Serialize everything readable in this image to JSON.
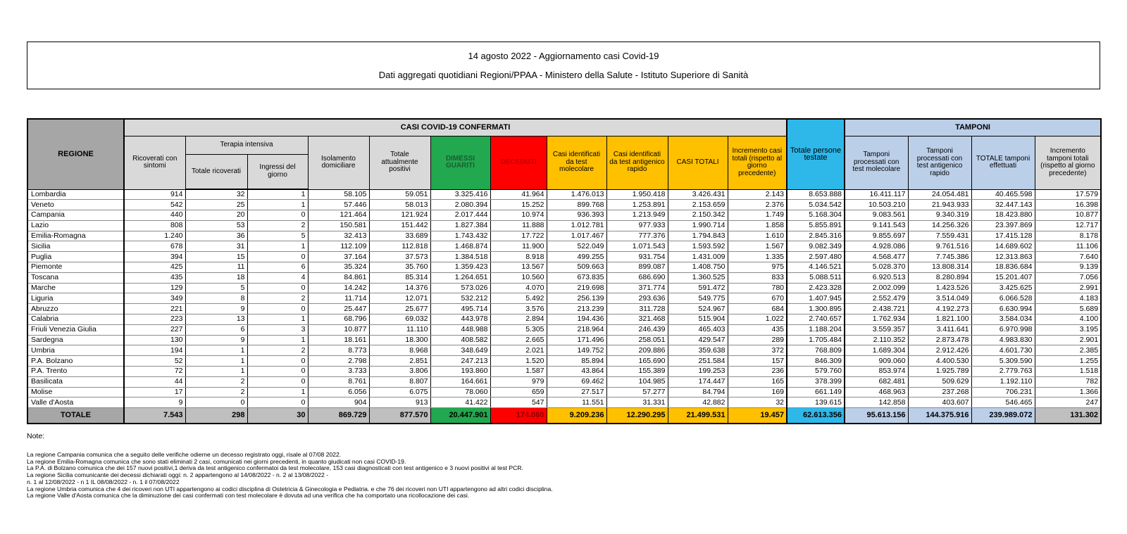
{
  "title_box": {
    "line1": "14 agosto 2022 - Aggiornamento casi Covid-19",
    "line2": "Dati aggregati quotidiani Regioni/PPAA - Ministero della Salute - Istituto Superiore di Sanità"
  },
  "table": {
    "headers": {
      "regione": "REGIONE",
      "casi_confermati": "CASI COVID-19 CONFERMATI",
      "tamponi": "TAMPONI",
      "ricoverati": "Ricoverati con sintomi",
      "terapia": "Terapia intensiva",
      "terapia_totale": "Totale ricoverati",
      "terapia_ingressi": "Ingressi del giorno",
      "isolamento": "Isolamento domiciliare",
      "attualmente_positivi": "Totale attualmente positivi",
      "dimessi": "DIMESSI GUARITI",
      "deceduti": "DECEDUTI",
      "casi_molecolare": "Casi identificati da test molecolare",
      "casi_antigenico": "Casi identificati da test antigenico rapido",
      "casi_totali": "CASI TOTALI",
      "incremento_casi": "Incremento casi totali (rispetto al giorno precedente)",
      "persone_testate": "Totale persone testate",
      "tamponi_molecolare": "Tamponi processati con test molecolare",
      "tamponi_antigenico": "Tamponi processati con test antigenico rapido",
      "tamponi_totale": "TOTALE tamponi effettuati",
      "incremento_tamponi": "Incremento tamponi totali (rispetto al giorno precedente)"
    },
    "rows": [
      {
        "region": "Lombardia",
        "values": [
          "914",
          "32",
          "1",
          "58.105",
          "59.051",
          "3.325.416",
          "41.964",
          "1.476.013",
          "1.950.418",
          "3.426.431",
          "2.143",
          "8.653.888",
          "16.411.117",
          "24.054.481",
          "40.465.598",
          "17.579"
        ]
      },
      {
        "region": "Veneto",
        "values": [
          "542",
          "25",
          "1",
          "57.446",
          "58.013",
          "2.080.394",
          "15.252",
          "899.768",
          "1.253.891",
          "2.153.659",
          "2.376",
          "5.034.542",
          "10.503.210",
          "21.943.933",
          "32.447.143",
          "16.398"
        ]
      },
      {
        "region": "Campania",
        "values": [
          "440",
          "20",
          "0",
          "121.464",
          "121.924",
          "2.017.444",
          "10.974",
          "936.393",
          "1.213.949",
          "2.150.342",
          "1.749",
          "5.168.304",
          "9.083.561",
          "9.340.319",
          "18.423.880",
          "10.877"
        ]
      },
      {
        "region": "Lazio",
        "values": [
          "808",
          "53",
          "2",
          "150.581",
          "151.442",
          "1.827.384",
          "11.888",
          "1.012.781",
          "977.933",
          "1.990.714",
          "1.858",
          "5.855.891",
          "9.141.543",
          "14.256.326",
          "23.397.869",
          "12.717"
        ]
      },
      {
        "region": "Emilia-Romagna",
        "values": [
          "1.240",
          "36",
          "5",
          "32.413",
          "33.689",
          "1.743.432",
          "17.722",
          "1.017.467",
          "777.376",
          "1.794.843",
          "1.610",
          "2.845.316",
          "9.855.697",
          "7.559.431",
          "17.415.128",
          "8.178"
        ]
      },
      {
        "region": "Sicilia",
        "values": [
          "678",
          "31",
          "1",
          "112.109",
          "112.818",
          "1.468.874",
          "11.900",
          "522.049",
          "1.071.543",
          "1.593.592",
          "1.567",
          "9.082.349",
          "4.928.086",
          "9.761.516",
          "14.689.602",
          "11.106"
        ]
      },
      {
        "region": "Puglia",
        "values": [
          "394",
          "15",
          "0",
          "37.164",
          "37.573",
          "1.384.518",
          "8.918",
          "499.255",
          "931.754",
          "1.431.009",
          "1.335",
          "2.597.480",
          "4.568.477",
          "7.745.386",
          "12.313.863",
          "7.640"
        ]
      },
      {
        "region": "Piemonte",
        "values": [
          "425",
          "11",
          "6",
          "35.324",
          "35.760",
          "1.359.423",
          "13.567",
          "509.663",
          "899.087",
          "1.408.750",
          "975",
          "4.146.521",
          "5.028.370",
          "13.808.314",
          "18.836.684",
          "9.139"
        ]
      },
      {
        "region": "Toscana",
        "values": [
          "435",
          "18",
          "4",
          "84.861",
          "85.314",
          "1.264.651",
          "10.560",
          "673.835",
          "686.690",
          "1.360.525",
          "833",
          "5.088.511",
          "6.920.513",
          "8.280.894",
          "15.201.407",
          "7.056"
        ]
      },
      {
        "region": "Marche",
        "values": [
          "129",
          "5",
          "0",
          "14.242",
          "14.376",
          "573.026",
          "4.070",
          "219.698",
          "371.774",
          "591.472",
          "780",
          "2.423.328",
          "2.002.099",
          "1.423.526",
          "3.425.625",
          "2.991"
        ]
      },
      {
        "region": "Liguria",
        "values": [
          "349",
          "8",
          "2",
          "11.714",
          "12.071",
          "532.212",
          "5.492",
          "256.139",
          "293.636",
          "549.775",
          "670",
          "1.407.945",
          "2.552.479",
          "3.514.049",
          "6.066.528",
          "4.183"
        ]
      },
      {
        "region": "Abruzzo",
        "values": [
          "221",
          "9",
          "0",
          "25.447",
          "25.677",
          "495.714",
          "3.576",
          "213.239",
          "311.728",
          "524.967",
          "684",
          "1.300.895",
          "2.438.721",
          "4.192.273",
          "6.630.994",
          "5.689"
        ]
      },
      {
        "region": "Calabria",
        "values": [
          "223",
          "13",
          "1",
          "68.796",
          "69.032",
          "443.978",
          "2.894",
          "194.436",
          "321.468",
          "515.904",
          "1.022",
          "2.740.657",
          "1.762.934",
          "1.821.100",
          "3.584.034",
          "4.100"
        ]
      },
      {
        "region": "Friuli Venezia Giulia",
        "values": [
          "227",
          "6",
          "3",
          "10.877",
          "11.110",
          "448.988",
          "5.305",
          "218.964",
          "246.439",
          "465.403",
          "435",
          "1.188.204",
          "3.559.357",
          "3.411.641",
          "6.970.998",
          "3.195"
        ]
      },
      {
        "region": "Sardegna",
        "values": [
          "130",
          "9",
          "1",
          "18.161",
          "18.300",
          "408.582",
          "2.665",
          "171.496",
          "258.051",
          "429.547",
          "289",
          "1.705.484",
          "2.110.352",
          "2.873.478",
          "4.983.830",
          "2.901"
        ]
      },
      {
        "region": "Umbria",
        "values": [
          "194",
          "1",
          "2",
          "8.773",
          "8.968",
          "348.649",
          "2.021",
          "149.752",
          "209.886",
          "359.638",
          "372",
          "768.809",
          "1.689.304",
          "2.912.426",
          "4.601.730",
          "2.385"
        ]
      },
      {
        "region": "P.A. Bolzano",
        "values": [
          "52",
          "1",
          "0",
          "2.798",
          "2.851",
          "247.213",
          "1.520",
          "85.894",
          "165.690",
          "251.584",
          "157",
          "846.309",
          "909.060",
          "4.400.530",
          "5.309.590",
          "1.255"
        ]
      },
      {
        "region": "P.A. Trento",
        "values": [
          "72",
          "1",
          "0",
          "3.733",
          "3.806",
          "193.860",
          "1.587",
          "43.864",
          "155.389",
          "199.253",
          "236",
          "579.760",
          "853.974",
          "1.925.789",
          "2.779.763",
          "1.518"
        ]
      },
      {
        "region": "Basilicata",
        "values": [
          "44",
          "2",
          "0",
          "8.761",
          "8.807",
          "164.661",
          "979",
          "69.462",
          "104.985",
          "174.447",
          "165",
          "378.399",
          "682.481",
          "509.629",
          "1.192.110",
          "782"
        ]
      },
      {
        "region": "Molise",
        "values": [
          "17",
          "2",
          "1",
          "6.056",
          "6.075",
          "78.060",
          "659",
          "27.517",
          "57.277",
          "84.794",
          "169",
          "661.149",
          "468.963",
          "237.268",
          "706.231",
          "1.366"
        ]
      },
      {
        "region": "Valle d'Aosta",
        "values": [
          "9",
          "0",
          "0",
          "904",
          "913",
          "41.422",
          "547",
          "11.551",
          "31.331",
          "42.882",
          "32",
          "139.615",
          "142.858",
          "403.607",
          "546.465",
          "247"
        ]
      }
    ],
    "total": {
      "label": "TOTALE",
      "values": [
        "7.543",
        "298",
        "30",
        "869.729",
        "877.570",
        "20.447.901",
        "174.060",
        "9.209.236",
        "12.290.295",
        "21.499.531",
        "19.457",
        "62.613.356",
        "95.613.156",
        "144.375.916",
        "239.989.072",
        "131.302"
      ]
    }
  },
  "notes": {
    "heading": "Note:",
    "lines": [
      "La regione Campania comunica che a seguito delle verifiche odierne un decesso registrato oggi, risale al 07/08 2022.",
      "La regione Emilia-Romagna  comunica che sono stati eliminati 2 casi, comunicati nei giorni precedenti, in quanto giudicati non casi COVID-19.",
      "La P.A. di Bolzano comunica che dei 157 nuovi positivi,1 deriva da test antigenico confermatoi da test molecolare, 153 casi diagnosticati con test antigenico e 3 nuovi positivi al test PCR.",
      "La regione Sicilia comunicante dei decessi dichiarati oggi: n. 2 appartengono al 14/08/2022 - n. 2 al 13/08/2022 -",
      "n. 1 al 12/08/2022 - n 1 IL 08/08/2022 - n. 1 il 07/08/2022",
      "La regione Umbria comunica che 4 dei ricoveri non UTI appartengono ai codici disciplina di Ostetricia & Ginecologia e Pediatria. e che  76 dei ricoveri non UTI appartengono ad altri codici disciplina.",
      "La regione Valle d'Aosta  comunica che la diminuzione dei casi confermati con test molecolare è dovuta ad una verifica che ha comportato una ricollocazione dei casi."
    ]
  },
  "colors": {
    "green": "#22a84e",
    "red": "#fe0000",
    "orange": "#ffc000",
    "cyan": "#2eb8ea",
    "light_blue": "#bccfe9",
    "header_grey": "#d9d9d9",
    "dark_grey": "#a6a6a6",
    "total_grey": "#bfbfbf"
  }
}
